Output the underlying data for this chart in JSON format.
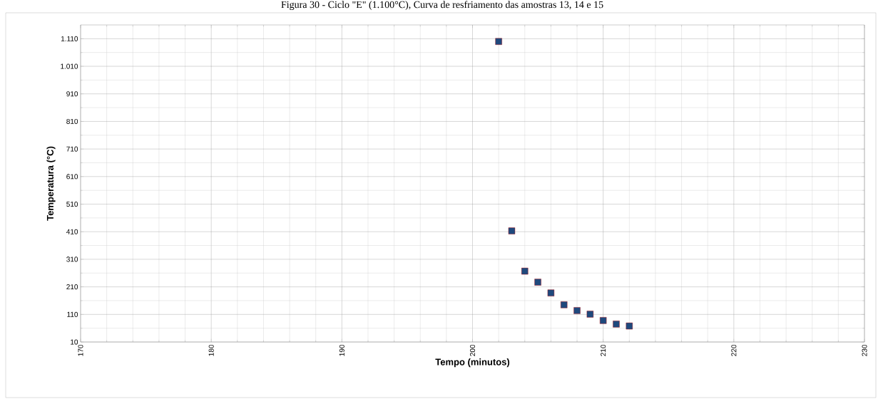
{
  "chart_data": {
    "type": "scatter",
    "title": "Figura 30 - Ciclo \"E\" (1.100°C), Curva de resfriamento das amostras 13, 14 e 15",
    "xlabel": "Tempo (minutos)",
    "ylabel": "Temperatura (°C)",
    "x": [
      202,
      203,
      204,
      205,
      206,
      207,
      208,
      209,
      210,
      211,
      212
    ],
    "values": [
      1100,
      413,
      267,
      227,
      188,
      145,
      124,
      111,
      88,
      75,
      68
    ],
    "color": "#1f497d",
    "marker": "square",
    "grid": true,
    "xlim": [
      170,
      230
    ],
    "xticks": [
      170,
      180,
      190,
      200,
      210,
      220,
      230
    ],
    "ylim": [
      10,
      1160
    ],
    "yticks": [
      {
        "value": 10,
        "label": "10"
      },
      {
        "value": 110,
        "label": "110"
      },
      {
        "value": 210,
        "label": "210"
      },
      {
        "value": 310,
        "label": "310"
      },
      {
        "value": 410,
        "label": "410"
      },
      {
        "value": 510,
        "label": "510"
      },
      {
        "value": 610,
        "label": "610"
      },
      {
        "value": 710,
        "label": "710"
      },
      {
        "value": 810,
        "label": "810"
      },
      {
        "value": 910,
        "label": "910"
      },
      {
        "value": 1010,
        "label": "1.010"
      },
      {
        "value": 1110,
        "label": "1.110"
      }
    ]
  }
}
